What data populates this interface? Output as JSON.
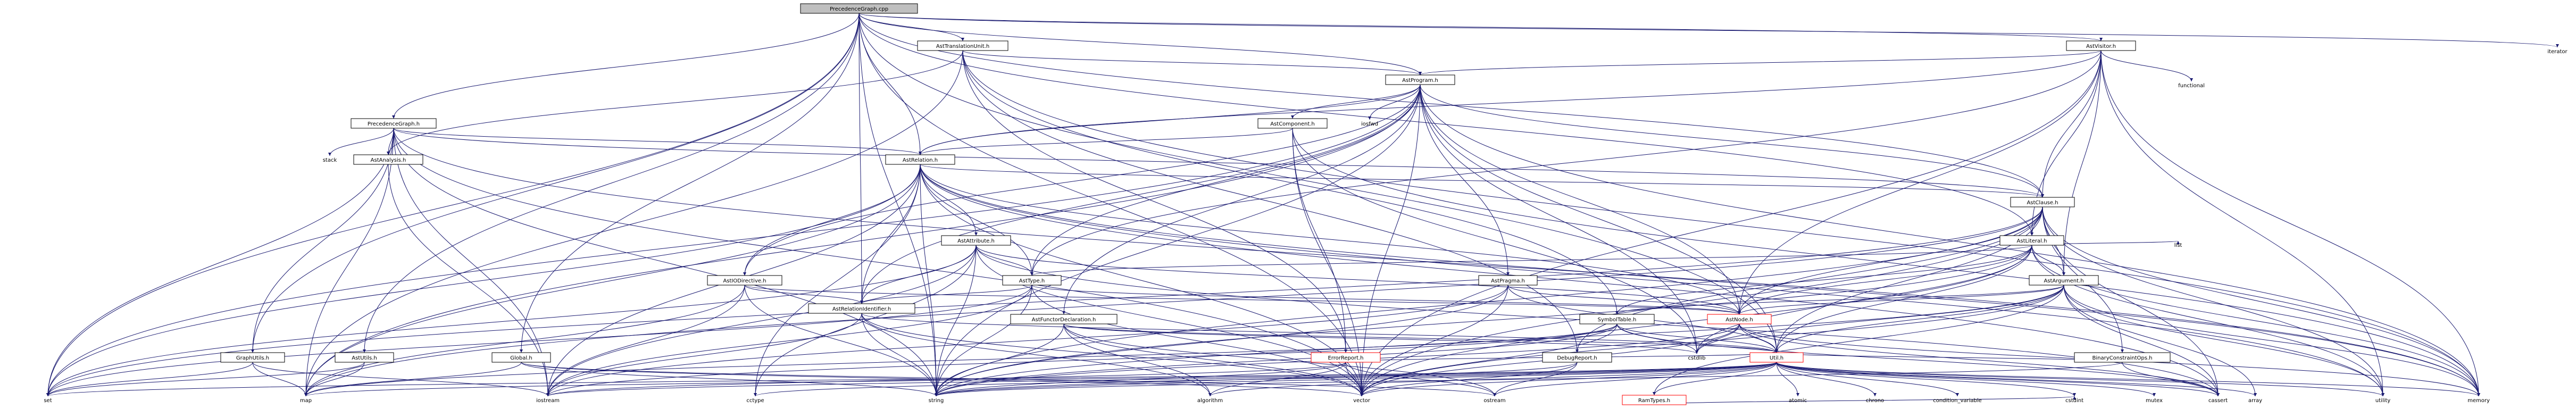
{
  "nodes": [
    {
      "id": "root",
      "label": "PrecedenceGraph.cpp",
      "kind": "root"
    },
    {
      "id": "atu",
      "label": "AstTranslationUnit.h",
      "kind": "normal"
    },
    {
      "id": "avis",
      "label": "AstVisitor.h",
      "kind": "normal"
    },
    {
      "id": "iter",
      "label": "iterator",
      "kind": "plain"
    },
    {
      "id": "aprog",
      "label": "AstProgram.h",
      "kind": "normal"
    },
    {
      "id": "func",
      "label": "functional",
      "kind": "plain"
    },
    {
      "id": "pg",
      "label": "PrecedenceGraph.h",
      "kind": "normal"
    },
    {
      "id": "acomp",
      "label": "AstComponent.h",
      "kind": "normal"
    },
    {
      "id": "ioshf",
      "label": "iosfwd",
      "kind": "plain"
    },
    {
      "id": "stack",
      "label": "stack",
      "kind": "plain"
    },
    {
      "id": "aana",
      "label": "AstAnalysis.h",
      "kind": "normal"
    },
    {
      "id": "arel",
      "label": "AstRelation.h",
      "kind": "normal"
    },
    {
      "id": "acl",
      "label": "AstClause.h",
      "kind": "normal"
    },
    {
      "id": "aattr",
      "label": "AstAttribute.h",
      "kind": "normal"
    },
    {
      "id": "alit",
      "label": "AstLiteral.h",
      "kind": "normal"
    },
    {
      "id": "list",
      "label": "list",
      "kind": "plain"
    },
    {
      "id": "aiodir",
      "label": "AstIODirective.h",
      "kind": "normal"
    },
    {
      "id": "atype",
      "label": "AstType.h",
      "kind": "normal"
    },
    {
      "id": "aprag",
      "label": "AstPragma.h",
      "kind": "normal"
    },
    {
      "id": "aarg",
      "label": "AstArgument.h",
      "kind": "normal"
    },
    {
      "id": "arid",
      "label": "AstRelationIdentifier.h",
      "kind": "normal"
    },
    {
      "id": "afunc",
      "label": "AstFunctorDeclaration.h",
      "kind": "normal"
    },
    {
      "id": "symt",
      "label": "SymbolTable.h",
      "kind": "normal"
    },
    {
      "id": "anode",
      "label": "AstNode.h",
      "kind": "red"
    },
    {
      "id": "dbg",
      "label": "DebugReport.h",
      "kind": "normal"
    },
    {
      "id": "gu",
      "label": "GraphUtils.h",
      "kind": "normal"
    },
    {
      "id": "au",
      "label": "AstUtils.h",
      "kind": "normal"
    },
    {
      "id": "glob",
      "label": "Global.h",
      "kind": "normal"
    },
    {
      "id": "err",
      "label": "ErrorReport.h",
      "kind": "red"
    },
    {
      "id": "util",
      "label": "Util.h",
      "kind": "red"
    },
    {
      "id": "bco",
      "label": "BinaryConstraintOps.h",
      "kind": "normal"
    },
    {
      "id": "ramt",
      "label": "RamTypes.h",
      "kind": "red"
    },
    {
      "id": "cstdlib",
      "label": "cstdlib",
      "kind": "plain"
    },
    {
      "id": "set",
      "label": "set",
      "kind": "plain"
    },
    {
      "id": "map",
      "label": "map",
      "kind": "plain"
    },
    {
      "id": "iostream",
      "label": "iostream",
      "kind": "plain"
    },
    {
      "id": "cctype",
      "label": "cctype",
      "kind": "plain"
    },
    {
      "id": "string",
      "label": "string",
      "kind": "plain"
    },
    {
      "id": "algorithm",
      "label": "algorithm",
      "kind": "plain"
    },
    {
      "id": "vector",
      "label": "vector",
      "kind": "plain"
    },
    {
      "id": "ostream",
      "label": "ostream",
      "kind": "plain"
    },
    {
      "id": "atomic",
      "label": "atomic",
      "kind": "plain"
    },
    {
      "id": "chrono",
      "label": "chrono",
      "kind": "plain"
    },
    {
      "id": "condvar",
      "label": "condition_variable",
      "kind": "plain"
    },
    {
      "id": "cstdint",
      "label": "cstdint",
      "kind": "plain"
    },
    {
      "id": "mutex",
      "label": "mutex",
      "kind": "plain"
    },
    {
      "id": "array",
      "label": "array",
      "kind": "plain"
    },
    {
      "id": "utility",
      "label": "utility",
      "kind": "plain"
    },
    {
      "id": "cassert",
      "label": "cassert",
      "kind": "plain"
    },
    {
      "id": "memory",
      "label": "memory",
      "kind": "plain"
    }
  ],
  "edges": [
    [
      "root",
      "atu"
    ],
    [
      "root",
      "avis"
    ],
    [
      "root",
      "iter"
    ],
    [
      "root",
      "aprog"
    ],
    [
      "root",
      "pg"
    ],
    [
      "root",
      "arel"
    ],
    [
      "root",
      "arid"
    ],
    [
      "root",
      "au"
    ],
    [
      "root",
      "glob"
    ],
    [
      "root",
      "gu"
    ],
    [
      "root",
      "set"
    ],
    [
      "root",
      "string"
    ],
    [
      "root",
      "vector"
    ],
    [
      "root",
      "alit"
    ],
    [
      "root",
      "acl"
    ],
    [
      "root",
      "util"
    ],
    [
      "atu",
      "aprog"
    ],
    [
      "atu",
      "aana"
    ],
    [
      "atu",
      "dbg"
    ],
    [
      "atu",
      "err"
    ],
    [
      "atu",
      "symt"
    ],
    [
      "atu",
      "memory"
    ],
    [
      "atu",
      "map"
    ],
    [
      "avis",
      "aprog"
    ],
    [
      "avis",
      "func"
    ],
    [
      "avis",
      "acl"
    ],
    [
      "avis",
      "alit"
    ],
    [
      "avis",
      "aarg"
    ],
    [
      "avis",
      "arel"
    ],
    [
      "avis",
      "vector"
    ],
    [
      "avis",
      "memory"
    ],
    [
      "avis",
      "utility"
    ],
    [
      "avis",
      "anode"
    ],
    [
      "avis",
      "atype"
    ],
    [
      "aprog",
      "acomp"
    ],
    [
      "aprog",
      "ioshf"
    ],
    [
      "aprog",
      "arel"
    ],
    [
      "aprog",
      "acl"
    ],
    [
      "aprog",
      "aprag"
    ],
    [
      "aprog",
      "aiodir"
    ],
    [
      "aprog",
      "atype"
    ],
    [
      "aprog",
      "afunc"
    ],
    [
      "aprog",
      "arid"
    ],
    [
      "aprog",
      "anode"
    ],
    [
      "aprog",
      "util"
    ],
    [
      "aprog",
      "map"
    ],
    [
      "aprog",
      "vector"
    ],
    [
      "aprog",
      "memory"
    ],
    [
      "aprog",
      "cstdlib"
    ],
    [
      "aprog",
      "set"
    ],
    [
      "aprog",
      "string"
    ],
    [
      "pg",
      "stack"
    ],
    [
      "pg",
      "aana"
    ],
    [
      "pg",
      "arel"
    ],
    [
      "pg",
      "gu"
    ],
    [
      "pg",
      "set"
    ],
    [
      "pg",
      "map"
    ],
    [
      "pg",
      "iostream"
    ],
    [
      "pg",
      "string"
    ],
    [
      "pg",
      "vector"
    ],
    [
      "pg",
      "memory"
    ],
    [
      "pg",
      "acl"
    ],
    [
      "acomp",
      "arel"
    ],
    [
      "acomp",
      "err"
    ],
    [
      "acomp",
      "cstdlib"
    ],
    [
      "acomp",
      "memory"
    ],
    [
      "acomp",
      "vector"
    ],
    [
      "aana",
      "iostream"
    ],
    [
      "arel",
      "acl"
    ],
    [
      "arel",
      "aattr"
    ],
    [
      "arel",
      "aiodir"
    ],
    [
      "arel",
      "atype"
    ],
    [
      "arel",
      "arid"
    ],
    [
      "arel",
      "anode"
    ],
    [
      "arel",
      "set"
    ],
    [
      "arel",
      "vector"
    ],
    [
      "arel",
      "string"
    ],
    [
      "arel",
      "cctype"
    ],
    [
      "arel",
      "iostream"
    ],
    [
      "arel",
      "memory"
    ],
    [
      "arel",
      "map"
    ],
    [
      "arel",
      "utility"
    ],
    [
      "arel",
      "cassert"
    ],
    [
      "acl",
      "alit"
    ],
    [
      "acl",
      "aarg"
    ],
    [
      "acl",
      "anode"
    ],
    [
      "acl",
      "util"
    ],
    [
      "acl",
      "bco"
    ],
    [
      "acl",
      "dbg"
    ],
    [
      "acl",
      "set"
    ],
    [
      "acl",
      "string"
    ],
    [
      "acl",
      "vector"
    ],
    [
      "acl",
      "memory"
    ],
    [
      "acl",
      "map"
    ],
    [
      "acl",
      "cassert"
    ],
    [
      "acl",
      "utility"
    ],
    [
      "aattr",
      "atype"
    ],
    [
      "aattr",
      "arid"
    ],
    [
      "aattr",
      "anode"
    ],
    [
      "aattr",
      "set"
    ],
    [
      "aattr",
      "string"
    ],
    [
      "aattr",
      "vector"
    ],
    [
      "aattr",
      "cctype"
    ],
    [
      "aattr",
      "iostream"
    ],
    [
      "aattr",
      "cassert"
    ],
    [
      "alit",
      "aarg"
    ],
    [
      "alit",
      "anode"
    ],
    [
      "alit",
      "atype"
    ],
    [
      "alit",
      "symt"
    ],
    [
      "alit",
      "util"
    ],
    [
      "alit",
      "list"
    ],
    [
      "alit",
      "memory"
    ],
    [
      "alit",
      "vector"
    ],
    [
      "alit",
      "string"
    ],
    [
      "alit",
      "cstdlib"
    ],
    [
      "alit",
      "utility"
    ],
    [
      "aiodir",
      "arid"
    ],
    [
      "aiodir",
      "anode"
    ],
    [
      "aiodir",
      "string"
    ],
    [
      "aiodir",
      "map"
    ],
    [
      "aiodir",
      "iostream"
    ],
    [
      "atype",
      "arid"
    ],
    [
      "atype",
      "anode"
    ],
    [
      "atype",
      "set"
    ],
    [
      "atype",
      "string"
    ],
    [
      "atype",
      "vector"
    ],
    [
      "atype",
      "iostream"
    ],
    [
      "aprag",
      "anode"
    ],
    [
      "aprag",
      "string"
    ],
    [
      "aprag",
      "vector"
    ],
    [
      "aprag",
      "util"
    ],
    [
      "aprag",
      "iostream"
    ],
    [
      "aarg",
      "anode"
    ],
    [
      "aarg",
      "symt"
    ],
    [
      "aarg",
      "util"
    ],
    [
      "aarg",
      "ramt"
    ],
    [
      "aarg",
      "memory"
    ],
    [
      "aarg",
      "cstdlib"
    ],
    [
      "aarg",
      "array"
    ],
    [
      "aarg",
      "utility"
    ],
    [
      "aarg",
      "string"
    ],
    [
      "aarg",
      "vector"
    ],
    [
      "aarg",
      "cassert"
    ],
    [
      "arid",
      "util"
    ],
    [
      "arid",
      "string"
    ],
    [
      "arid",
      "algorithm"
    ],
    [
      "arid",
      "vector"
    ],
    [
      "arid",
      "iostream"
    ],
    [
      "afunc",
      "util"
    ],
    [
      "afunc",
      "string"
    ],
    [
      "afunc",
      "algorithm"
    ],
    [
      "afunc",
      "vector"
    ],
    [
      "afunc",
      "cstdlib"
    ],
    [
      "afunc",
      "ostream"
    ],
    [
      "symt",
      "util"
    ],
    [
      "symt",
      "cstdlib"
    ],
    [
      "symt",
      "string"
    ],
    [
      "symt",
      "vector"
    ],
    [
      "symt",
      "iostream"
    ],
    [
      "symt",
      "map"
    ],
    [
      "symt",
      "cassert"
    ],
    [
      "anode",
      "util"
    ],
    [
      "anode",
      "cstdlib"
    ],
    [
      "anode",
      "memory"
    ],
    [
      "anode",
      "string"
    ],
    [
      "anode",
      "vector"
    ],
    [
      "anode",
      "cassert"
    ],
    [
      "dbg",
      "ostream"
    ],
    [
      "dbg",
      "string"
    ],
    [
      "dbg",
      "vector"
    ],
    [
      "gu",
      "set"
    ],
    [
      "gu",
      "map"
    ],
    [
      "gu",
      "iostream"
    ],
    [
      "au",
      "set"
    ],
    [
      "au",
      "map"
    ],
    [
      "glob",
      "map"
    ],
    [
      "glob",
      "string"
    ],
    [
      "glob",
      "vector"
    ],
    [
      "glob",
      "ostream"
    ],
    [
      "err",
      "string"
    ],
    [
      "err",
      "vector"
    ],
    [
      "err",
      "ostream"
    ],
    [
      "err",
      "algorithm"
    ],
    [
      "err",
      "iostream"
    ],
    [
      "err",
      "util"
    ],
    [
      "util",
      "ramt"
    ],
    [
      "util",
      "atomic"
    ],
    [
      "util",
      "chrono"
    ],
    [
      "util",
      "condvar"
    ],
    [
      "util",
      "cstdint"
    ],
    [
      "util",
      "mutex"
    ],
    [
      "util",
      "array"
    ],
    [
      "util",
      "utility"
    ],
    [
      "util",
      "cassert"
    ],
    [
      "util",
      "memory"
    ],
    [
      "util",
      "set"
    ],
    [
      "util",
      "map"
    ],
    [
      "util",
      "string"
    ],
    [
      "util",
      "vector"
    ],
    [
      "util",
      "algorithm"
    ],
    [
      "util",
      "iostream"
    ],
    [
      "util",
      "ostream"
    ],
    [
      "util",
      "cctype"
    ],
    [
      "bco",
      "util"
    ],
    [
      "bco",
      "cassert"
    ],
    [
      "bco",
      "string"
    ],
    [
      "ramt",
      "cstdint"
    ]
  ]
}
